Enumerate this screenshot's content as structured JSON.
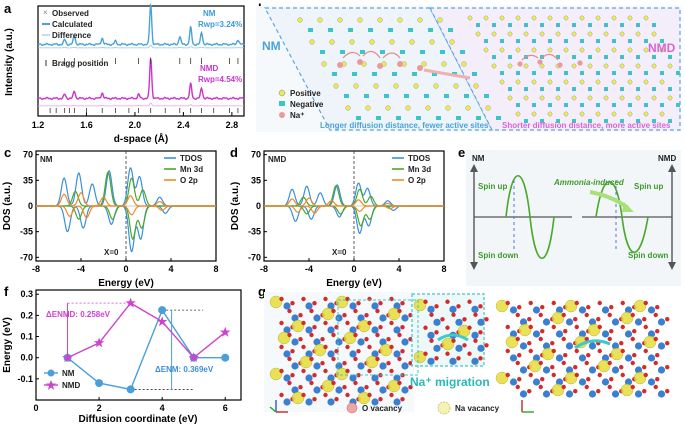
{
  "panel_letters": [
    "a",
    "b",
    "c",
    "d",
    "e",
    "f",
    "g"
  ],
  "chart_data": [
    {
      "id": "a",
      "type": "line",
      "title": "",
      "xlabel": "d-space (Å)",
      "ylabel": "Intensity (a.u.)",
      "xlim": [
        1.2,
        2.9
      ],
      "xticks": [
        "1.2",
        "1.6",
        "2.0",
        "2.4",
        "2.8"
      ],
      "legend": [
        "Observed",
        "Calculated",
        "Difference",
        "Bragg position"
      ],
      "annotations": [
        {
          "label": "NM",
          "rwp": "Rwp=3.24%"
        },
        {
          "label": "NMD",
          "rwp": "Rwp=4.54%"
        }
      ],
      "series": [
        {
          "name": "NM",
          "color": "#4aa3d8",
          "peaks": [
            {
              "x": 1.42,
              "h": 0.12
            },
            {
              "x": 1.5,
              "h": 0.22
            },
            {
              "x": 1.73,
              "h": 0.16
            },
            {
              "x": 1.84,
              "h": 0.08
            },
            {
              "x": 2.13,
              "h": 1.0
            },
            {
              "x": 2.37,
              "h": 0.2
            },
            {
              "x": 2.46,
              "h": 0.42
            },
            {
              "x": 2.55,
              "h": 0.3
            },
            {
              "x": 2.85,
              "h": 0.12
            }
          ]
        },
        {
          "name": "NMD",
          "color": "#cc33cc",
          "peaks": [
            {
              "x": 1.42,
              "h": 0.1
            },
            {
              "x": 1.5,
              "h": 0.18
            },
            {
              "x": 1.73,
              "h": 0.14
            },
            {
              "x": 2.03,
              "h": 0.1
            },
            {
              "x": 2.13,
              "h": 1.0
            },
            {
              "x": 2.46,
              "h": 0.36
            },
            {
              "x": 2.55,
              "h": 0.26
            }
          ]
        }
      ]
    },
    {
      "id": "c",
      "type": "line",
      "panel_label": "NM",
      "xlabel": "Energy (eV)",
      "ylabel": "DOS (a.u.)",
      "xlim": [
        -8,
        8
      ],
      "ylim": [
        -75,
        75
      ],
      "xticks": [
        "-8",
        "-4",
        "0",
        "4",
        "8"
      ],
      "yticks": [
        "70",
        "35",
        "0",
        "-35",
        "-70"
      ],
      "zero_label": "X=0",
      "series": [
        {
          "name": "TDOS",
          "color": "#3a8fd9"
        },
        {
          "name": "Mn 3d",
          "color": "#4aa82a"
        },
        {
          "name": "O 2p",
          "color": "#f08a2a"
        }
      ]
    },
    {
      "id": "d",
      "type": "line",
      "panel_label": "NMD",
      "xlabel": "Energy (eV)",
      "ylabel": "DOS (a.u.)",
      "xlim": [
        -8,
        8
      ],
      "ylim": [
        -75,
        75
      ],
      "xticks": [
        "-8",
        "-4",
        "0",
        "4",
        "8"
      ],
      "yticks": [
        "70",
        "35",
        "0",
        "-35",
        "-70"
      ],
      "zero_label": "X=0",
      "series": [
        {
          "name": "TDOS",
          "color": "#3a8fd9"
        },
        {
          "name": "Mn 3d",
          "color": "#4aa82a"
        },
        {
          "name": "O 2p",
          "color": "#f08a2a"
        }
      ]
    },
    {
      "id": "f",
      "type": "line",
      "xlabel": "Diffusion coordinate (eV)",
      "ylabel": "Energy (eV)",
      "xlim": [
        0,
        6.5
      ],
      "ylim": [
        -0.2,
        0.32
      ],
      "xticks": [
        "0",
        "2",
        "4",
        "6"
      ],
      "yticks": [
        "0.3",
        "0.2",
        "0.1",
        "0.0",
        "-0.1"
      ],
      "x": [
        1,
        2,
        3,
        4,
        5,
        6
      ],
      "series": [
        {
          "name": "NM",
          "color": "#4a9fd8",
          "marker": "circle",
          "values": [
            0.0,
            -0.12,
            -0.15,
            0.225,
            0.0,
            0.0
          ]
        },
        {
          "name": "NMD",
          "color": "#cc44cc",
          "marker": "star",
          "values": [
            0.0,
            0.07,
            0.258,
            0.17,
            0.0,
            0.12
          ]
        }
      ],
      "annotations": [
        {
          "label": "ΔENMD: 0.258eV",
          "color": "#cc44cc"
        },
        {
          "label": "ΔENM: 0.369eV",
          "color": "#4a9fd8"
        }
      ]
    }
  ],
  "panel_b": {
    "left_label": "NM",
    "right_label": "NMD",
    "caption_left": "Longer diffusion distance, fewer active sites",
    "caption_right": "Shorter diffusion distance, more active sites",
    "legend": [
      "Positive",
      "Negative",
      "Na⁺"
    ]
  },
  "panel_e": {
    "left_label": "NM",
    "right_label": "NMD",
    "arrow_text": "Ammonia-induced",
    "spin_up": "Spin up",
    "spin_down": "Spin down"
  },
  "panel_g": {
    "migration_label": "Na⁺ migration",
    "legend": [
      "O vacancy",
      "Na vacancy"
    ]
  }
}
